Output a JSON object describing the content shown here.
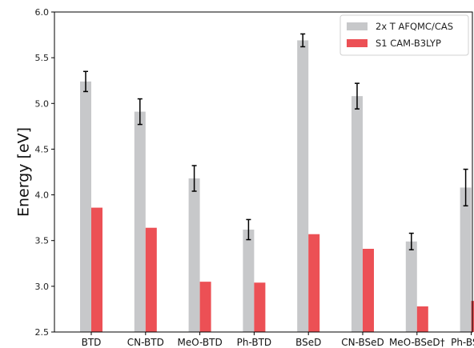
{
  "chart_data": {
    "type": "bar",
    "ylabel": "Energy [eV]",
    "xlabel": "",
    "ylim": [
      2.5,
      6.0
    ],
    "yticks": [
      "2.5",
      "3.0",
      "3.5",
      "4.0",
      "4.5",
      "5.0",
      "5.5",
      "6.0"
    ],
    "grid": false,
    "legend_position": "top-right",
    "categories": [
      "BTD",
      "CN-BTD",
      "MeO-BTD",
      "Ph-BTD",
      "BSeD",
      "CN-BSeD",
      "MeO-BSeD†",
      "Ph-BSeD"
    ],
    "series": [
      {
        "name": "2x T AFQMC/CAS",
        "color": "#c7c8ca",
        "values": [
          5.24,
          4.91,
          4.18,
          3.62,
          5.69,
          5.08,
          3.49,
          4.08
        ],
        "errors": [
          0.11,
          0.14,
          0.14,
          0.11,
          0.07,
          0.14,
          0.09,
          0.2
        ]
      },
      {
        "name": "S1 CAM-B3LYP",
        "color": "#ec5055",
        "values": [
          3.86,
          3.64,
          3.05,
          3.04,
          3.57,
          3.41,
          2.78,
          2.84
        ]
      }
    ]
  }
}
